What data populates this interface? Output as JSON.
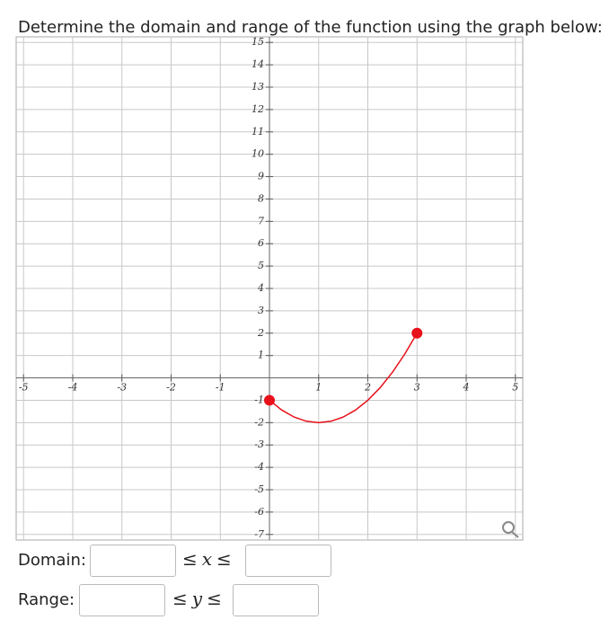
{
  "question": "Determine the domain and range of the function using the graph below:",
  "graph": {
    "xlim": [
      -5.15,
      5.15
    ],
    "ylim": [
      -7.25,
      15.25
    ],
    "xticks": [
      -5,
      -4,
      -3,
      -2,
      -1,
      1,
      2,
      3,
      4,
      5
    ],
    "yticks": [
      -7,
      -6,
      -5,
      -4,
      -3,
      -2,
      -1,
      1,
      2,
      3,
      4,
      5,
      6,
      7,
      8,
      9,
      10,
      11,
      12,
      13,
      14,
      15
    ],
    "curve": {
      "color": "#e8101a",
      "x": [
        0,
        0.25,
        0.5,
        0.75,
        1,
        1.25,
        1.5,
        1.75,
        2,
        2.25,
        2.5,
        2.75,
        3
      ],
      "y": [
        -1,
        -1.4375,
        -1.75,
        -1.9375,
        -2,
        -1.9375,
        -1.75,
        -1.4375,
        -1,
        -0.4375,
        0.25,
        1.0625,
        2
      ]
    },
    "endpoints": [
      {
        "x": 0,
        "y": -1
      },
      {
        "x": 3,
        "y": 2
      }
    ]
  },
  "domain": {
    "label": "Domain:",
    "relation": [
      "≤",
      "x",
      "≤"
    ]
  },
  "range": {
    "label": "Range:",
    "relation": [
      "≤",
      "y",
      "≤"
    ]
  }
}
